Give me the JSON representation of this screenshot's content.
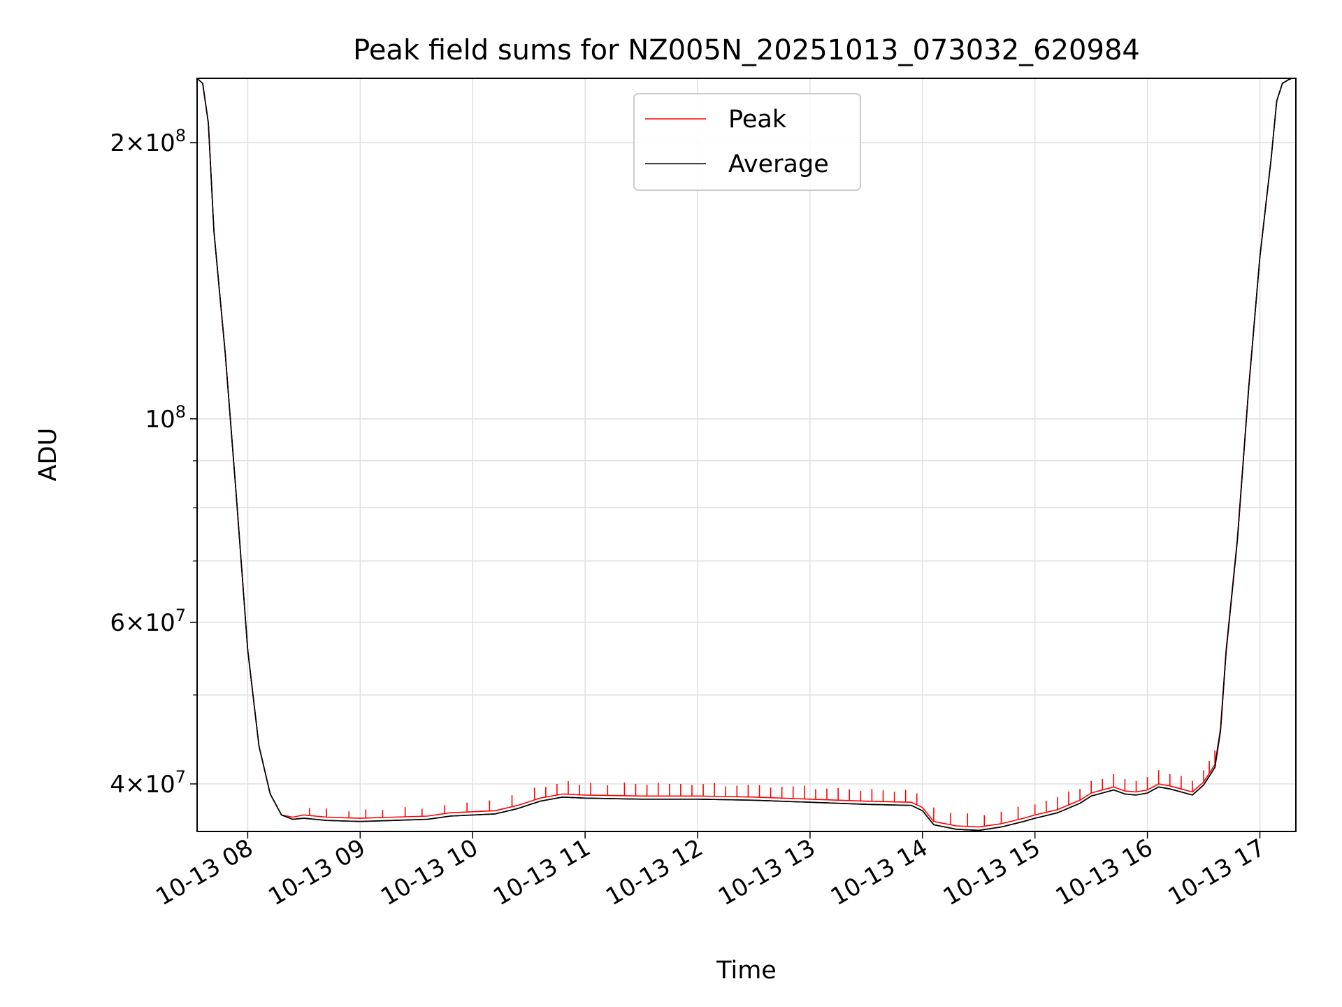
{
  "chart_data": {
    "type": "line",
    "title": "Peak field sums for NZ005N_20251013_073032_620984",
    "xlabel": "Time",
    "ylabel": "ADU",
    "yscale": "log",
    "xlim": [
      7.55,
      17.32
    ],
    "ylim": [
      35500000,
      235000000
    ],
    "grid": true,
    "legend_position": "top-center",
    "x_ticks": [
      {
        "value": 8,
        "label": "10-13 08"
      },
      {
        "value": 9,
        "label": "10-13 09"
      },
      {
        "value": 10,
        "label": "10-13 10"
      },
      {
        "value": 11,
        "label": "10-13 11"
      },
      {
        "value": 12,
        "label": "10-13 12"
      },
      {
        "value": 13,
        "label": "10-13 13"
      },
      {
        "value": 14,
        "label": "10-13 14"
      },
      {
        "value": 15,
        "label": "10-13 15"
      },
      {
        "value": 16,
        "label": "10-13 16"
      },
      {
        "value": 17,
        "label": "10-13 17"
      }
    ],
    "y_ticks": [
      {
        "value": 40000000,
        "mantissa": "4",
        "exp": "7"
      },
      {
        "value": 60000000,
        "mantissa": "6",
        "exp": "7"
      },
      {
        "value": 100000000,
        "mantissa": "",
        "exp": "8"
      },
      {
        "value": 200000000,
        "mantissa": "2",
        "exp": "8"
      }
    ],
    "y_minor_ticks": [
      50000000,
      70000000,
      80000000,
      90000000
    ],
    "series": [
      {
        "name": "Peak",
        "color": "#ff0000",
        "x": [
          7.55,
          7.6,
          7.65,
          7.7,
          7.8,
          7.9,
          8.0,
          8.1,
          8.2,
          8.3,
          8.4,
          8.5,
          8.7,
          9.0,
          9.3,
          9.6,
          9.8,
          10.0,
          10.2,
          10.4,
          10.6,
          10.8,
          11.0,
          11.5,
          12.0,
          12.5,
          13.0,
          13.5,
          13.9,
          14.0,
          14.1,
          14.3,
          14.5,
          14.7,
          14.9,
          15.0,
          15.2,
          15.4,
          15.5,
          15.6,
          15.7,
          15.8,
          15.9,
          16.0,
          16.1,
          16.2,
          16.3,
          16.4,
          16.5,
          16.6,
          16.65,
          16.7,
          16.8,
          16.9,
          17.0,
          17.05,
          17.1,
          17.15,
          17.2,
          17.25,
          17.32
        ],
        "y": [
          235000000,
          232000000,
          210000000,
          160000000,
          118000000,
          82000000,
          56000000,
          44000000,
          39000000,
          37000000,
          36800000,
          37000000,
          36800000,
          36700000,
          36800000,
          36900000,
          37200000,
          37300000,
          37400000,
          37900000,
          38600000,
          39000000,
          38900000,
          38800000,
          38800000,
          38700000,
          38500000,
          38300000,
          38200000,
          37700000,
          36400000,
          36000000,
          35900000,
          36200000,
          36700000,
          37000000,
          37500000,
          38400000,
          39100000,
          39400000,
          39700000,
          39300000,
          39200000,
          39400000,
          40000000,
          39800000,
          39500000,
          39200000,
          40200000,
          42000000,
          46000000,
          56000000,
          74000000,
          108000000,
          150000000,
          170000000,
          192000000,
          222000000,
          232000000,
          234000000,
          236000000
        ],
        "spikes_x": [
          8.55,
          8.7,
          8.9,
          9.05,
          9.2,
          9.4,
          9.55,
          9.75,
          9.95,
          10.15,
          10.35,
          10.55,
          10.65,
          10.75,
          10.85,
          10.95,
          11.05,
          11.2,
          11.35,
          11.45,
          11.55,
          11.65,
          11.75,
          11.85,
          11.95,
          12.05,
          12.15,
          12.25,
          12.35,
          12.45,
          12.55,
          12.65,
          12.75,
          12.85,
          12.95,
          13.05,
          13.15,
          13.25,
          13.35,
          13.45,
          13.55,
          13.65,
          13.75,
          13.85,
          13.95,
          14.1,
          14.25,
          14.4,
          14.55,
          14.7,
          14.85,
          15.0,
          15.1,
          15.2,
          15.3,
          15.4,
          15.5,
          15.6,
          15.7,
          15.8,
          15.9,
          16.0,
          16.1,
          16.2,
          16.3,
          16.4,
          16.5,
          16.55,
          16.6
        ],
        "spikes_dy": [
          700000,
          800000,
          600000,
          800000,
          700000,
          900000,
          700000,
          800000,
          900000,
          1000000,
          1100000,
          1200000,
          1000000,
          1100000,
          1300000,
          1000000,
          1200000,
          1000000,
          1300000,
          1200000,
          1100000,
          1300000,
          1200000,
          1200000,
          1100000,
          1200000,
          1300000,
          1000000,
          1100000,
          1200000,
          1200000,
          1000000,
          1100000,
          1200000,
          1300000,
          1000000,
          1100000,
          1200000,
          1100000,
          1000000,
          1200000,
          1100000,
          1000000,
          1200000,
          1100000,
          1300000,
          1100000,
          1200000,
          1000000,
          1100000,
          1200000,
          1000000,
          1100000,
          1200000,
          1300000,
          1100000,
          1200000,
          1100000,
          1300000,
          1200000,
          1100000,
          1300000,
          1400000,
          1200000,
          1300000,
          1100000,
          1200000,
          1300000,
          1500000
        ]
      },
      {
        "name": "Average",
        "color": "#000000",
        "x": [
          7.55,
          7.6,
          7.65,
          7.7,
          7.8,
          7.9,
          8.0,
          8.1,
          8.2,
          8.3,
          8.4,
          8.5,
          8.7,
          9.0,
          9.3,
          9.6,
          9.8,
          10.0,
          10.2,
          10.4,
          10.6,
          10.8,
          11.0,
          11.5,
          12.0,
          12.5,
          13.0,
          13.5,
          13.9,
          14.0,
          14.1,
          14.3,
          14.5,
          14.7,
          14.9,
          15.0,
          15.2,
          15.4,
          15.5,
          15.6,
          15.7,
          15.8,
          15.9,
          16.0,
          16.1,
          16.2,
          16.3,
          16.4,
          16.5,
          16.6,
          16.65,
          16.7,
          16.8,
          16.9,
          17.0,
          17.05,
          17.1,
          17.15,
          17.2,
          17.25,
          17.32
        ],
        "y": [
          235000000,
          232000000,
          210000000,
          160000000,
          118000000,
          82000000,
          56000000,
          44000000,
          39000000,
          37000000,
          36600000,
          36700000,
          36500000,
          36400000,
          36500000,
          36600000,
          36900000,
          37000000,
          37100000,
          37600000,
          38300000,
          38700000,
          38600000,
          38500000,
          38500000,
          38400000,
          38200000,
          38000000,
          37900000,
          37400000,
          36100000,
          35700000,
          35600000,
          35900000,
          36400000,
          36700000,
          37200000,
          38100000,
          38800000,
          39100000,
          39400000,
          39000000,
          38900000,
          39100000,
          39700000,
          39500000,
          39200000,
          38900000,
          39900000,
          41700000,
          45700000,
          55700000,
          73700000,
          107700000,
          150000000,
          170000000,
          192000000,
          222000000,
          232000000,
          234000000,
          236000000
        ]
      }
    ]
  }
}
